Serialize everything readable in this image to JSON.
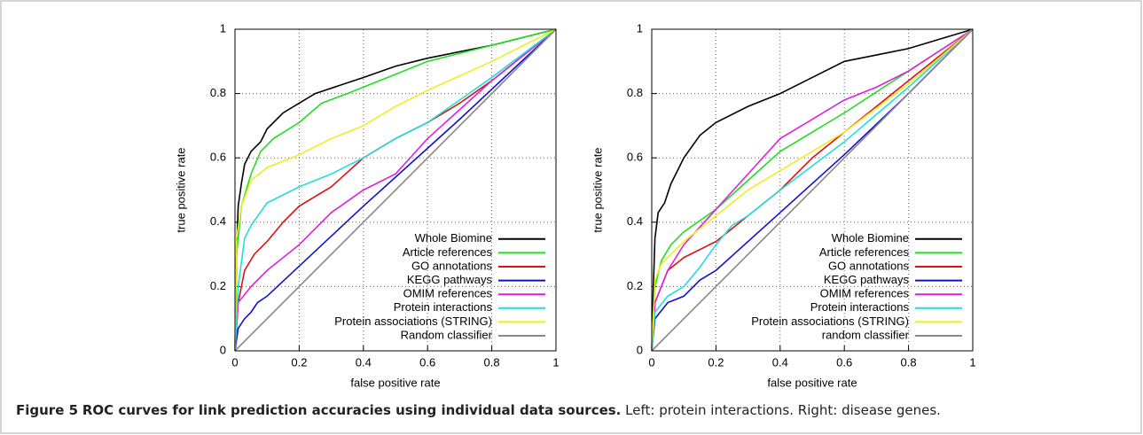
{
  "chart_data": [
    {
      "type": "line",
      "xlabel": "false positive rate",
      "ylabel": "true positive rate",
      "xlim": [
        0,
        1
      ],
      "ylim": [
        0,
        1
      ],
      "xticks": [
        0,
        0.2,
        0.4,
        0.6,
        0.8,
        1
      ],
      "yticks": [
        0,
        0.2,
        0.4,
        0.6,
        0.8,
        1
      ],
      "grid": true,
      "legend": "lower right",
      "series": [
        {
          "name": "Whole Biomine",
          "color": "#000000",
          "x": [
            0,
            0.005,
            0.01,
            0.02,
            0.03,
            0.05,
            0.08,
            0.1,
            0.15,
            0.2,
            0.25,
            0.4,
            0.5,
            0.6,
            0.8,
            1
          ],
          "values": [
            0,
            0.3,
            0.45,
            0.52,
            0.58,
            0.62,
            0.65,
            0.69,
            0.74,
            0.77,
            0.8,
            0.85,
            0.885,
            0.91,
            0.95,
            1
          ]
        },
        {
          "name": "Article references",
          "color": "#22dd22",
          "x": [
            0,
            0.005,
            0.02,
            0.05,
            0.08,
            0.12,
            0.2,
            0.27,
            0.35,
            0.5,
            0.6,
            0.8,
            1
          ],
          "values": [
            0,
            0.3,
            0.45,
            0.55,
            0.62,
            0.66,
            0.71,
            0.77,
            0.8,
            0.86,
            0.9,
            0.95,
            1
          ]
        },
        {
          "name": "GO annotations",
          "color": "#dd1111",
          "x": [
            0,
            0.01,
            0.03,
            0.06,
            0.1,
            0.15,
            0.2,
            0.3,
            0.4,
            0.5,
            0.6,
            0.7,
            0.8,
            1
          ],
          "values": [
            0,
            0.15,
            0.25,
            0.3,
            0.34,
            0.4,
            0.45,
            0.51,
            0.6,
            0.66,
            0.71,
            0.77,
            0.84,
            1
          ]
        },
        {
          "name": "KEGG pathways",
          "color": "#1111cc",
          "x": [
            0,
            0.01,
            0.03,
            0.05,
            0.07,
            0.1,
            0.4,
            0.7,
            1
          ],
          "values": [
            0,
            0.07,
            0.1,
            0.12,
            0.15,
            0.17,
            0.45,
            0.72,
            1
          ]
        },
        {
          "name": "OMIM references",
          "color": "#dd22dd",
          "x": [
            0,
            0.01,
            0.05,
            0.1,
            0.2,
            0.3,
            0.4,
            0.5,
            0.6,
            0.7,
            0.8,
            1
          ],
          "values": [
            0,
            0.15,
            0.2,
            0.25,
            0.33,
            0.43,
            0.5,
            0.55,
            0.66,
            0.75,
            0.84,
            1
          ]
        },
        {
          "name": "Protein interactions",
          "color": "#22dddd",
          "x": [
            0,
            0.01,
            0.03,
            0.05,
            0.1,
            0.2,
            0.3,
            0.4,
            0.5,
            0.6,
            0.7,
            0.8,
            1
          ],
          "values": [
            0,
            0.2,
            0.35,
            0.39,
            0.46,
            0.51,
            0.55,
            0.6,
            0.66,
            0.71,
            0.78,
            0.85,
            1
          ]
        },
        {
          "name": "Protein associations (STRING)",
          "color": "#eeee22",
          "x": [
            0,
            0.005,
            0.02,
            0.05,
            0.1,
            0.2,
            0.3,
            0.4,
            0.5,
            0.6,
            0.8,
            1
          ],
          "values": [
            0,
            0.35,
            0.45,
            0.53,
            0.57,
            0.61,
            0.66,
            0.7,
            0.76,
            0.81,
            0.9,
            1
          ]
        },
        {
          "name": "Random classifier",
          "color": "#888888",
          "x": [
            0,
            1
          ],
          "values": [
            0,
            1
          ]
        }
      ]
    },
    {
      "type": "line",
      "xlabel": "false positive rate",
      "ylabel": "true positive rate",
      "xlim": [
        0,
        1
      ],
      "ylim": [
        0,
        1
      ],
      "xticks": [
        0,
        0.2,
        0.4,
        0.6,
        0.8,
        1
      ],
      "yticks": [
        0,
        0.2,
        0.4,
        0.6,
        0.8,
        1
      ],
      "grid": true,
      "legend": "lower right",
      "series": [
        {
          "name": "Whole Biomine",
          "color": "#000000",
          "x": [
            0,
            0.005,
            0.01,
            0.02,
            0.04,
            0.06,
            0.1,
            0.15,
            0.2,
            0.3,
            0.4,
            0.5,
            0.6,
            0.7,
            0.8,
            1
          ],
          "values": [
            0,
            0.2,
            0.35,
            0.43,
            0.46,
            0.52,
            0.6,
            0.67,
            0.71,
            0.76,
            0.8,
            0.85,
            0.9,
            0.92,
            0.94,
            1
          ]
        },
        {
          "name": "Article references",
          "color": "#22dd22",
          "x": [
            0,
            0.01,
            0.03,
            0.06,
            0.1,
            0.2,
            0.3,
            0.4,
            0.5,
            0.6,
            0.8,
            1
          ],
          "values": [
            0,
            0.2,
            0.28,
            0.33,
            0.37,
            0.44,
            0.53,
            0.62,
            0.68,
            0.74,
            0.87,
            1
          ]
        },
        {
          "name": "GO annotations",
          "color": "#dd1111",
          "x": [
            0,
            0.01,
            0.05,
            0.1,
            0.2,
            0.3,
            0.4,
            0.5,
            0.6,
            0.8,
            1
          ],
          "values": [
            0,
            0.15,
            0.25,
            0.29,
            0.34,
            0.42,
            0.5,
            0.6,
            0.68,
            0.84,
            1
          ]
        },
        {
          "name": "KEGG pathways",
          "color": "#1111cc",
          "x": [
            0,
            0.01,
            0.05,
            0.1,
            0.15,
            0.2,
            0.3,
            0.4,
            0.6,
            0.8,
            1
          ],
          "values": [
            0,
            0.1,
            0.15,
            0.17,
            0.22,
            0.25,
            0.34,
            0.43,
            0.61,
            0.8,
            1
          ]
        },
        {
          "name": "OMIM references",
          "color": "#dd22dd",
          "x": [
            0,
            0.01,
            0.05,
            0.1,
            0.2,
            0.3,
            0.4,
            0.5,
            0.6,
            0.7,
            0.8,
            1
          ],
          "values": [
            0,
            0.15,
            0.25,
            0.33,
            0.44,
            0.55,
            0.66,
            0.72,
            0.78,
            0.82,
            0.87,
            1
          ]
        },
        {
          "name": "Protein interactions",
          "color": "#22dddd",
          "x": [
            0,
            0.01,
            0.05,
            0.1,
            0.15,
            0.2,
            0.25,
            0.3,
            0.4,
            0.6,
            0.8,
            1
          ],
          "values": [
            0,
            0.12,
            0.17,
            0.2,
            0.26,
            0.33,
            0.39,
            0.42,
            0.5,
            0.65,
            0.82,
            1
          ]
        },
        {
          "name": "Protein associations (STRING)",
          "color": "#eeee22",
          "x": [
            0,
            0.01,
            0.03,
            0.06,
            0.1,
            0.2,
            0.3,
            0.4,
            0.5,
            0.6,
            0.8,
            1
          ],
          "values": [
            0,
            0.22,
            0.27,
            0.3,
            0.34,
            0.42,
            0.5,
            0.56,
            0.62,
            0.68,
            0.83,
            1
          ]
        },
        {
          "name": "random classifier",
          "color": "#888888",
          "x": [
            0,
            1
          ],
          "values": [
            0,
            1
          ]
        }
      ]
    }
  ],
  "caption": {
    "label": "Figure 5",
    "title": "ROC curves for link prediction accuracies using individual data sources.",
    "text": "Left: protein interactions. Right: disease genes."
  }
}
